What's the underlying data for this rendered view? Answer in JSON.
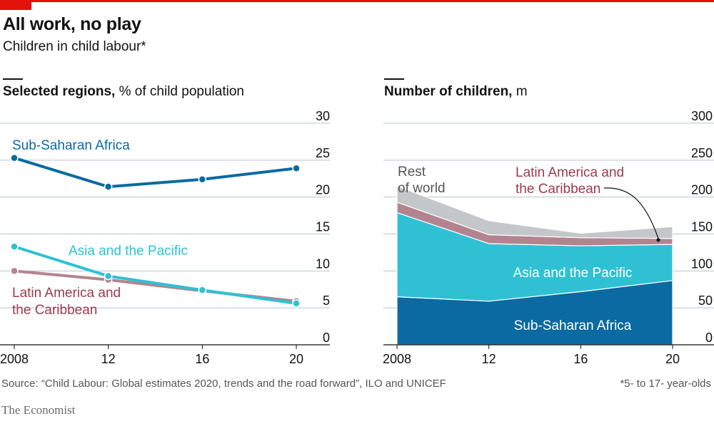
{
  "header": {
    "title": "All work, no play",
    "subtitle": "Children in child labour*"
  },
  "left_panel": {
    "title_bold": "Selected regions,",
    "title_rest": " % of child population"
  },
  "right_panel": {
    "title_bold": "Number of children,",
    "title_rest": " m"
  },
  "footer": {
    "source": "Source: “Child Labour: Global estimates 2020, trends and the road forward”, ILO and UNICEF",
    "footnote": "*5- to 17- year-olds",
    "brand": "The Economist"
  },
  "colors": {
    "accent": "#e3120b",
    "ssa": "#0a6aa1",
    "asia": "#2fc1d3",
    "latam_line": "#9c3a4f",
    "latam_area": "#b3848f",
    "rest": "#c4c7c9",
    "grid": "#b4c2cd"
  },
  "chart_data": [
    {
      "type": "line",
      "title": "Selected regions, % of child population",
      "x": [
        2008,
        2012,
        2016,
        2020
      ],
      "x_tick_labels": [
        "2008",
        "12",
        "16",
        "20"
      ],
      "ylim": [
        0,
        30
      ],
      "y_ticks": [
        0,
        5,
        10,
        15,
        20,
        25,
        30
      ],
      "grid": true,
      "series": [
        {
          "name": "Sub-Saharan Africa",
          "label": "Sub-Saharan Africa",
          "color": "#0a6aa1",
          "values": [
            25.3,
            21.4,
            22.4,
            23.9
          ]
        },
        {
          "name": "Asia and the Pacific",
          "label": "Asia and the Pacific",
          "color": "#2fc1d3",
          "values": [
            13.3,
            9.3,
            7.4,
            5.6
          ]
        },
        {
          "name": "Latin America and the Caribbean",
          "label_lines": [
            "Latin America and",
            "the Caribbean"
          ],
          "color": "#9c3a4f",
          "values": [
            10.0,
            8.8,
            7.3,
            5.9
          ]
        }
      ]
    },
    {
      "type": "area",
      "stacked": true,
      "title": "Number of children, m",
      "x": [
        2008,
        2012,
        2016,
        2020
      ],
      "x_tick_labels": [
        "2008",
        "12",
        "16",
        "20"
      ],
      "ylim": [
        0,
        300
      ],
      "y_ticks": [
        0,
        50,
        100,
        150,
        200,
        250,
        300
      ],
      "grid": true,
      "series": [
        {
          "name": "Sub-Saharan Africa",
          "label": "Sub-Saharan Africa",
          "color": "#0a6aa1",
          "values": [
            65,
            59,
            72,
            87
          ]
        },
        {
          "name": "Asia and the Pacific",
          "label": "Asia and the Pacific",
          "color": "#2fc1d3",
          "values": [
            114,
            78,
            62,
            49
          ]
        },
        {
          "name": "Latin America and the Caribbean",
          "label_lines": [
            "Latin America and",
            "the Caribbean"
          ],
          "color": "#b3848f",
          "values": [
            14,
            12,
            11,
            8
          ]
        },
        {
          "name": "Rest of world",
          "label_lines": [
            "Rest",
            "of world"
          ],
          "color": "#c4c7c9",
          "values": [
            22,
            19,
            6,
            16
          ]
        }
      ]
    }
  ]
}
